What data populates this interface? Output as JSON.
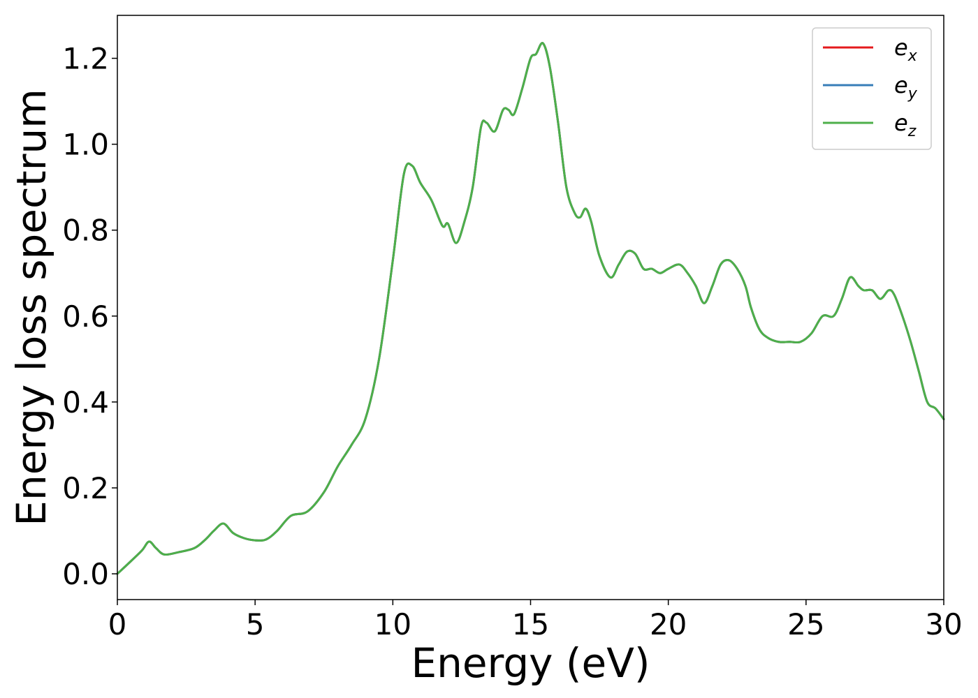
{
  "chart_data": {
    "type": "line",
    "xlabel": "Energy (eV)",
    "ylabel": "Energy loss spectrum",
    "xlim": [
      0,
      30
    ],
    "ylim": [
      -0.06,
      1.3
    ],
    "xticks": [
      0,
      5,
      10,
      15,
      20,
      25,
      30
    ],
    "xtick_labels": [
      "0",
      "5",
      "10",
      "15",
      "20",
      "25",
      "30"
    ],
    "yticks": [
      0.0,
      0.2,
      0.4,
      0.6,
      0.8,
      1.0,
      1.2
    ],
    "ytick_labels": [
      "0.0",
      "0.2",
      "0.4",
      "0.6",
      "0.8",
      "1.0",
      "1.2"
    ],
    "grid": false,
    "legend_position": "top-right",
    "x": [
      0,
      0.5,
      0.9,
      1.15,
      1.4,
      1.7,
      2.2,
      2.8,
      3.2,
      3.5,
      3.85,
      4.2,
      4.6,
      5.0,
      5.4,
      5.8,
      6.3,
      6.9,
      7.5,
      8.0,
      8.5,
      9.0,
      9.5,
      10.0,
      10.4,
      10.7,
      11.0,
      11.4,
      11.8,
      12.0,
      12.3,
      12.6,
      12.9,
      13.2,
      13.4,
      13.7,
      14.0,
      14.2,
      14.4,
      14.7,
      15.0,
      15.2,
      15.45,
      15.7,
      16.0,
      16.3,
      16.6,
      16.8,
      17.0,
      17.2,
      17.5,
      17.9,
      18.2,
      18.5,
      18.8,
      19.1,
      19.4,
      19.7,
      20.0,
      20.4,
      20.7,
      21.0,
      21.3,
      21.6,
      21.9,
      22.2,
      22.5,
      22.8,
      23.0,
      23.3,
      23.6,
      24.0,
      24.4,
      24.8,
      25.2,
      25.6,
      26.0,
      26.3,
      26.6,
      26.9,
      27.1,
      27.4,
      27.7,
      28.0,
      28.2,
      28.5,
      28.8,
      29.1,
      29.4,
      29.7,
      30.0
    ],
    "series": [
      {
        "name": "e_x",
        "color": "#e41a1c",
        "values": [
          0.0,
          0.03,
          0.055,
          0.075,
          0.06,
          0.045,
          0.05,
          0.06,
          0.08,
          0.1,
          0.117,
          0.095,
          0.083,
          0.078,
          0.08,
          0.1,
          0.135,
          0.145,
          0.19,
          0.25,
          0.3,
          0.36,
          0.5,
          0.73,
          0.93,
          0.95,
          0.91,
          0.87,
          0.81,
          0.815,
          0.77,
          0.82,
          0.9,
          1.04,
          1.05,
          1.03,
          1.08,
          1.08,
          1.07,
          1.13,
          1.2,
          1.21,
          1.235,
          1.18,
          1.05,
          0.9,
          0.84,
          0.83,
          0.85,
          0.82,
          0.74,
          0.69,
          0.72,
          0.75,
          0.745,
          0.71,
          0.71,
          0.7,
          0.71,
          0.72,
          0.7,
          0.67,
          0.63,
          0.67,
          0.72,
          0.73,
          0.71,
          0.67,
          0.62,
          0.57,
          0.55,
          0.54,
          0.54,
          0.54,
          0.56,
          0.6,
          0.6,
          0.64,
          0.69,
          0.67,
          0.66,
          0.66,
          0.64,
          0.66,
          0.65,
          0.6,
          0.54,
          0.47,
          0.4,
          0.385,
          0.36
        ]
      },
      {
        "name": "e_y",
        "color": "#377eb8",
        "values": [
          0.0,
          0.03,
          0.055,
          0.075,
          0.06,
          0.045,
          0.05,
          0.06,
          0.08,
          0.1,
          0.117,
          0.095,
          0.083,
          0.078,
          0.08,
          0.1,
          0.135,
          0.145,
          0.19,
          0.25,
          0.3,
          0.36,
          0.5,
          0.73,
          0.93,
          0.95,
          0.91,
          0.87,
          0.81,
          0.815,
          0.77,
          0.82,
          0.9,
          1.04,
          1.05,
          1.03,
          1.08,
          1.08,
          1.07,
          1.13,
          1.2,
          1.21,
          1.235,
          1.18,
          1.05,
          0.9,
          0.84,
          0.83,
          0.85,
          0.82,
          0.74,
          0.69,
          0.72,
          0.75,
          0.745,
          0.71,
          0.71,
          0.7,
          0.71,
          0.72,
          0.7,
          0.67,
          0.63,
          0.67,
          0.72,
          0.73,
          0.71,
          0.67,
          0.62,
          0.57,
          0.55,
          0.54,
          0.54,
          0.54,
          0.56,
          0.6,
          0.6,
          0.64,
          0.69,
          0.67,
          0.66,
          0.66,
          0.64,
          0.66,
          0.65,
          0.6,
          0.54,
          0.47,
          0.4,
          0.385,
          0.36
        ]
      },
      {
        "name": "e_z",
        "color": "#4daf4a",
        "values": [
          0.0,
          0.03,
          0.055,
          0.075,
          0.06,
          0.045,
          0.05,
          0.06,
          0.08,
          0.1,
          0.117,
          0.095,
          0.083,
          0.078,
          0.08,
          0.1,
          0.135,
          0.145,
          0.19,
          0.25,
          0.3,
          0.36,
          0.5,
          0.73,
          0.93,
          0.95,
          0.91,
          0.87,
          0.81,
          0.815,
          0.77,
          0.82,
          0.9,
          1.04,
          1.05,
          1.03,
          1.08,
          1.08,
          1.07,
          1.13,
          1.2,
          1.21,
          1.235,
          1.18,
          1.05,
          0.9,
          0.84,
          0.83,
          0.85,
          0.82,
          0.74,
          0.69,
          0.72,
          0.75,
          0.745,
          0.71,
          0.71,
          0.7,
          0.71,
          0.72,
          0.7,
          0.67,
          0.63,
          0.67,
          0.72,
          0.73,
          0.71,
          0.67,
          0.62,
          0.57,
          0.55,
          0.54,
          0.54,
          0.54,
          0.56,
          0.6,
          0.6,
          0.64,
          0.69,
          0.67,
          0.66,
          0.66,
          0.64,
          0.66,
          0.65,
          0.6,
          0.54,
          0.47,
          0.4,
          0.385,
          0.36
        ]
      }
    ],
    "legend": [
      {
        "base": "e",
        "sub": "x",
        "color": "#e41a1c"
      },
      {
        "base": "e",
        "sub": "y",
        "color": "#377eb8"
      },
      {
        "base": "e",
        "sub": "z",
        "color": "#4daf4a"
      }
    ]
  }
}
